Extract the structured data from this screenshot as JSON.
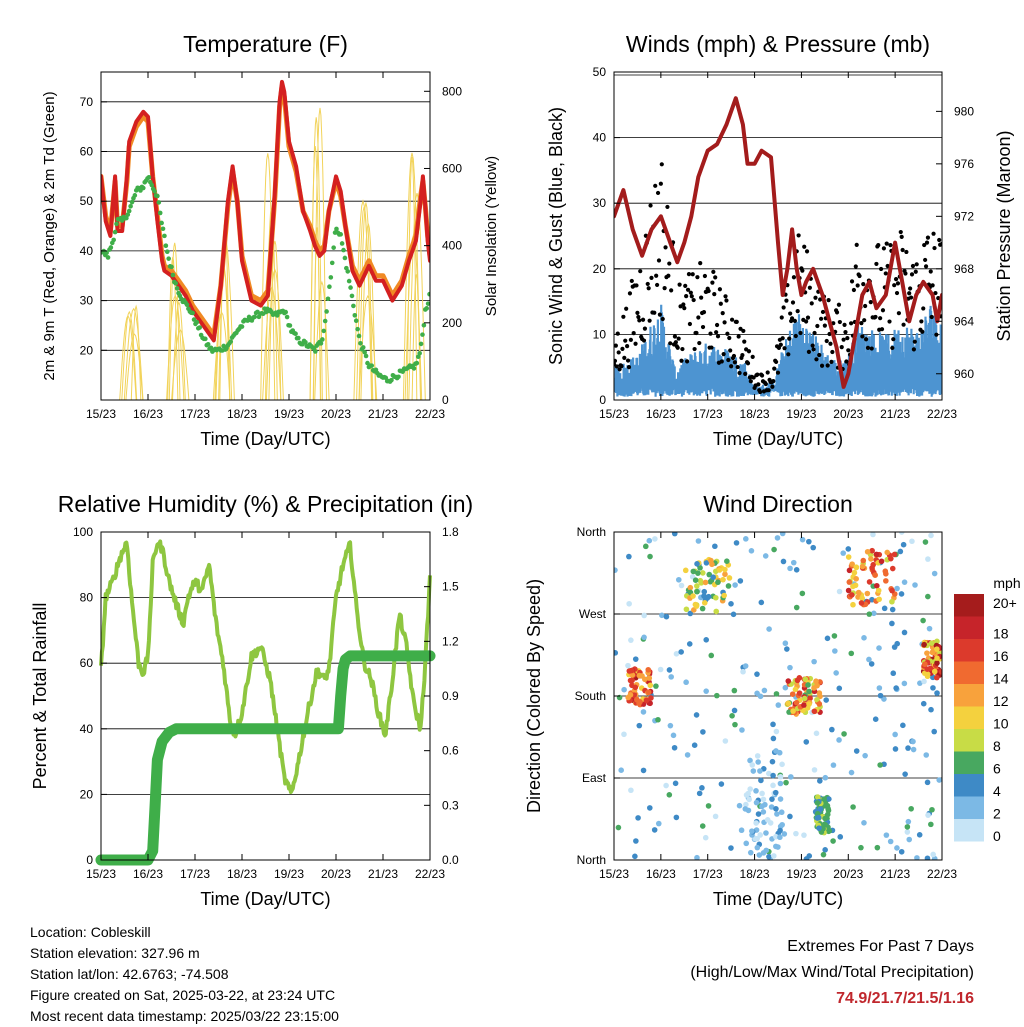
{
  "colors": {
    "temp_red": "#d42020",
    "temp_orange": "#f08a24",
    "dewpoint_green": "#3fae49",
    "solar_yellow": "#f2d35a",
    "wind_blue": "#4d94d1",
    "gust_black": "#000000",
    "pressure_maroon": "#a31c1c",
    "rh_lightgreen": "#8ec640",
    "precip_green": "#3fae49",
    "extremes_red": "#c0272d"
  },
  "shared_x_ticks": [
    "15/23",
    "16/23",
    "17/23",
    "18/23",
    "19/23",
    "20/23",
    "21/23",
    "22/23"
  ],
  "chart_data": [
    {
      "type": "line",
      "title": "Temperature (F)",
      "xlabel": "Time (Day/UTC)",
      "ylabel": "2m & 9m T (Red, Orange) & 2m Td (Green)",
      "y2label": "Solar Insolation (Yellow)",
      "ylim": [
        10,
        76
      ],
      "y2lim": [
        0,
        850
      ],
      "xlim": [
        0,
        7
      ],
      "y_ticks": [
        "20",
        "30",
        "40",
        "50",
        "60",
        "70"
      ],
      "y2_ticks": [
        "0",
        "200",
        "400",
        "600",
        "800"
      ],
      "grid": true,
      "series": [
        {
          "key": "t2m",
          "color": "temp_red",
          "x": [
            0,
            0.1,
            0.2,
            0.3,
            0.35,
            0.45,
            0.55,
            0.6,
            0.75,
            0.9,
            1.0,
            1.1,
            1.2,
            1.3,
            1.35,
            1.5,
            1.65,
            1.8,
            1.95,
            2.1,
            2.25,
            2.4,
            2.55,
            2.7,
            2.8,
            2.9,
            3.0,
            3.1,
            3.2,
            3.4,
            3.55,
            3.7,
            3.8,
            3.85,
            3.9,
            4.0,
            4.15,
            4.3,
            4.45,
            4.55,
            4.65,
            4.75,
            4.85,
            5.0,
            5.1,
            5.2,
            5.35,
            5.5,
            5.7,
            5.85,
            6.0,
            6.2,
            6.4,
            6.55,
            6.7,
            6.8,
            6.85,
            6.9,
            6.95,
            7.0
          ],
          "y": [
            55,
            46,
            43,
            55,
            44,
            44,
            55,
            62,
            66,
            68,
            67,
            55,
            46,
            38,
            36,
            35,
            33,
            31,
            28,
            26,
            24,
            22,
            33,
            50,
            57,
            50,
            38,
            34,
            30,
            29,
            31,
            52,
            70,
            74,
            72,
            62,
            57,
            48,
            44,
            41,
            39,
            40,
            48,
            55,
            52,
            45,
            36,
            33,
            37,
            34,
            34,
            30,
            33,
            38,
            42,
            50,
            55,
            49,
            42,
            38
          ]
        },
        {
          "key": "t9m",
          "color": "temp_orange",
          "x": [
            0,
            0.1,
            0.2,
            0.3,
            0.35,
            0.45,
            0.55,
            0.6,
            0.75,
            0.9,
            1.0,
            1.1,
            1.2,
            1.3,
            1.35,
            1.5,
            1.65,
            1.8,
            1.95,
            2.1,
            2.25,
            2.4,
            2.55,
            2.7,
            2.8,
            2.9,
            3.0,
            3.1,
            3.2,
            3.4,
            3.55,
            3.7,
            3.8,
            3.85,
            3.9,
            4.0,
            4.15,
            4.3,
            4.45,
            4.55,
            4.65,
            4.75,
            4.85,
            5.0,
            5.1,
            5.2,
            5.35,
            5.5,
            5.7,
            5.85,
            6.0,
            6.2,
            6.4,
            6.55,
            6.7,
            6.8,
            6.85,
            6.9,
            6.95,
            7.0
          ],
          "y": [
            55,
            47,
            44,
            54,
            45,
            45,
            54,
            61,
            65,
            67,
            66,
            55,
            47,
            39,
            37,
            36,
            34,
            32,
            29,
            27,
            25,
            23,
            33,
            49,
            56,
            50,
            39,
            35,
            31,
            30,
            32,
            51,
            69,
            73,
            71,
            61,
            56,
            48,
            45,
            42,
            40,
            41,
            48,
            54,
            51,
            45,
            37,
            34,
            38,
            35,
            35,
            31,
            34,
            39,
            43,
            51,
            54,
            49,
            43,
            39
          ]
        },
        {
          "key": "td2m",
          "color": "dewpoint_green",
          "x": [
            0,
            0.15,
            0.25,
            0.35,
            0.45,
            0.6,
            0.75,
            0.9,
            1.0,
            1.1,
            1.2,
            1.3,
            1.45,
            1.6,
            1.75,
            1.9,
            2.05,
            2.2,
            2.35,
            2.5,
            2.7,
            2.9,
            3.1,
            3.3,
            3.5,
            3.7,
            3.9,
            4.05,
            4.2,
            4.4,
            4.55,
            4.7,
            4.8,
            4.9,
            5.0,
            5.1,
            5.2,
            5.3,
            5.5,
            5.7,
            5.9,
            6.1,
            6.3,
            6.5,
            6.7,
            6.8,
            6.9,
            7.0
          ],
          "y": [
            40,
            39,
            42,
            46,
            46,
            48,
            52,
            53,
            55,
            53,
            51,
            45,
            38,
            33,
            30,
            28,
            25,
            22,
            20,
            20,
            21,
            24,
            26,
            27,
            28,
            27,
            28,
            24,
            22,
            21,
            20,
            22,
            28,
            36,
            45,
            43,
            38,
            33,
            22,
            17,
            15,
            14,
            15,
            16,
            17,
            20,
            28,
            31
          ]
        }
      ],
      "solar_series": {
        "key": "solar",
        "color": "solar_yellow",
        "peaks": [
          {
            "x": 0.65,
            "y": 300
          },
          {
            "x": 1.6,
            "y": 430
          },
          {
            "x": 2.65,
            "y": 500
          },
          {
            "x": 3.65,
            "y": 800
          },
          {
            "x": 4.65,
            "y": 840
          },
          {
            "x": 5.65,
            "y": 750
          },
          {
            "x": 6.6,
            "y": 800
          }
        ]
      }
    },
    {
      "type": "scatter",
      "title": "Winds (mph) & Pressure (mb)",
      "xlabel": "Time (Day/UTC)",
      "ylabel": "Sonic Wind & Gust (Blue, Black)",
      "y2label": "Station Pressure (Maroon)",
      "ylim": [
        0,
        50
      ],
      "y2lim": [
        958,
        983
      ],
      "xlim": [
        0,
        7
      ],
      "y_ticks": [
        "0",
        "10",
        "20",
        "30",
        "40",
        "50"
      ],
      "y2_ticks": [
        "960",
        "964",
        "968",
        "972",
        "976",
        "980"
      ],
      "grid": true,
      "series": [
        {
          "key": "pressure",
          "type": "line",
          "color": "pressure_maroon",
          "x": [
            0,
            0.2,
            0.4,
            0.6,
            0.8,
            1.0,
            1.2,
            1.35,
            1.5,
            1.65,
            1.8,
            2.0,
            2.2,
            2.4,
            2.6,
            2.75,
            2.85,
            3.0,
            3.15,
            3.35,
            3.5,
            3.6,
            3.7,
            3.8,
            3.9,
            4.0,
            4.1,
            4.25,
            4.45,
            4.6,
            4.75,
            4.9,
            5.0,
            5.15,
            5.3,
            5.45,
            5.6,
            5.8,
            6.0,
            6.15,
            6.3,
            6.45,
            6.6,
            6.8,
            6.9,
            7.0
          ],
          "y": [
            972,
            974,
            971,
            969,
            971,
            972,
            970,
            968.5,
            970,
            972,
            975,
            977,
            977.5,
            979,
            981,
            979,
            976,
            976,
            977,
            976.5,
            970,
            966,
            968,
            971,
            968,
            966,
            967,
            968,
            966,
            964,
            962,
            959,
            960,
            963,
            966,
            967,
            965,
            966,
            970,
            967,
            964,
            966,
            967,
            966,
            964,
            966
          ]
        },
        {
          "key": "wind",
          "type": "scatter",
          "color": "wind_blue",
          "envelope": [
            [
              0,
              5
            ],
            [
              0.5,
              7
            ],
            [
              0.8,
              12
            ],
            [
              1.0,
              15
            ],
            [
              1.3,
              5
            ],
            [
              1.6,
              7
            ],
            [
              2.0,
              9
            ],
            [
              2.4,
              8
            ],
            [
              2.8,
              6
            ],
            [
              3.0,
              2
            ],
            [
              3.4,
              3
            ],
            [
              3.6,
              8
            ],
            [
              3.9,
              14
            ],
            [
              4.1,
              12
            ],
            [
              4.4,
              9
            ],
            [
              4.6,
              7
            ],
            [
              4.8,
              6
            ],
            [
              5.0,
              7
            ],
            [
              5.2,
              12
            ],
            [
              5.5,
              11
            ],
            [
              5.8,
              10
            ],
            [
              6.2,
              12
            ],
            [
              6.5,
              11
            ],
            [
              6.8,
              16
            ],
            [
              7.0,
              13
            ]
          ]
        },
        {
          "key": "gust",
          "type": "scatter",
          "color": "gust_black",
          "envelope": [
            [
              0,
              10
            ],
            [
              0.3,
              16
            ],
            [
              0.6,
              25
            ],
            [
              0.8,
              33
            ],
            [
              1.0,
              40
            ],
            [
              1.2,
              28
            ],
            [
              1.4,
              18
            ],
            [
              1.7,
              20
            ],
            [
              2.0,
              22
            ],
            [
              2.3,
              17
            ],
            [
              2.6,
              14
            ],
            [
              2.9,
              8
            ],
            [
              3.1,
              4
            ],
            [
              3.4,
              5
            ],
            [
              3.6,
              14
            ],
            [
              3.9,
              26
            ],
            [
              4.1,
              24
            ],
            [
              4.4,
              17
            ],
            [
              4.7,
              15
            ],
            [
              5.0,
              14
            ],
            [
              5.2,
              28
            ],
            [
              5.5,
              25
            ],
            [
              5.8,
              24
            ],
            [
              6.1,
              27
            ],
            [
              6.4,
              23
            ],
            [
              6.7,
              28
            ],
            [
              7.0,
              26
            ]
          ]
        }
      ]
    },
    {
      "type": "line",
      "title": "Relative Humidity (%) & Precipitation (in)",
      "xlabel": "Time (Day/UTC)",
      "ylabel": "Percent & Total Rainfall",
      "ylim": [
        0,
        100
      ],
      "y2lim": [
        0,
        1.8
      ],
      "xlim": [
        0,
        7
      ],
      "y_ticks": [
        "0",
        "20",
        "40",
        "60",
        "80",
        "100"
      ],
      "y2_ticks": [
        "0.0",
        "0.3",
        "0.6",
        "0.9",
        "1.2",
        "1.5",
        "1.8"
      ],
      "grid": true,
      "series": [
        {
          "key": "rh",
          "color": "rh_lightgreen",
          "x": [
            0,
            0.1,
            0.25,
            0.4,
            0.55,
            0.65,
            0.8,
            0.9,
            1.0,
            1.1,
            1.2,
            1.3,
            1.45,
            1.6,
            1.75,
            1.85,
            2.0,
            2.15,
            2.3,
            2.45,
            2.6,
            2.75,
            2.85,
            3.0,
            3.2,
            3.4,
            3.6,
            3.75,
            3.9,
            4.05,
            4.2,
            4.4,
            4.6,
            4.75,
            4.85,
            5.0,
            5.15,
            5.3,
            5.45,
            5.6,
            5.75,
            5.9,
            6.05,
            6.2,
            6.35,
            6.5,
            6.65,
            6.8,
            6.9,
            7.0
          ],
          "y": [
            58,
            80,
            85,
            92,
            97,
            80,
            60,
            57,
            62,
            90,
            97,
            95,
            85,
            78,
            72,
            80,
            85,
            82,
            90,
            72,
            60,
            42,
            38,
            45,
            62,
            65,
            55,
            40,
            25,
            20,
            30,
            45,
            58,
            55,
            58,
            80,
            90,
            96,
            75,
            60,
            55,
            45,
            38,
            55,
            75,
            65,
            48,
            40,
            60,
            86
          ]
        },
        {
          "key": "precip",
          "color": "precip_green",
          "x": [
            0,
            1.0,
            1.1,
            1.15,
            1.2,
            1.3,
            1.45,
            1.6,
            2.0,
            3.0,
            4.0,
            5.05,
            5.1,
            5.15,
            5.2,
            5.3,
            6.0,
            7.0
          ],
          "y": [
            0,
            0,
            0.05,
            0.3,
            0.55,
            0.65,
            0.7,
            0.72,
            0.72,
            0.72,
            0.72,
            0.72,
            0.9,
            1.05,
            1.1,
            1.12,
            1.12,
            1.12
          ]
        }
      ]
    },
    {
      "type": "scatter",
      "title": "Wind Direction",
      "xlabel": "Time (Day/UTC)",
      "ylabel": "Direction (Colored By Speed)",
      "ylim": [
        0,
        360
      ],
      "xlim": [
        0,
        7
      ],
      "y_ticks": [
        "North",
        "East",
        "South",
        "West",
        "North"
      ],
      "grid": true,
      "legend": {
        "title": "mph",
        "labels": [
          "20+",
          "18",
          "16",
          "14",
          "12",
          "10",
          "8",
          "6",
          "4",
          "2",
          "0"
        ],
        "colors": [
          "#a51c1c",
          "#c6242a",
          "#dc3a2c",
          "#f06a30",
          "#f8a23c",
          "#f4d13e",
          "#c8dc46",
          "#48a860",
          "#3e8ac6",
          "#7cb9e5",
          "#c6e4f6"
        ]
      },
      "clusters": [
        {
          "x": [
            0,
            7
          ],
          "y": [
            0,
            360
          ],
          "speed": [
            0,
            6
          ]
        },
        {
          "x": [
            0.3,
            0.8
          ],
          "y": [
            170,
            210
          ],
          "speed": [
            10,
            20
          ]
        },
        {
          "x": [
            1.5,
            2.5
          ],
          "y": [
            270,
            330
          ],
          "speed": [
            4,
            12
          ]
        },
        {
          "x": [
            3.7,
            4.4
          ],
          "y": [
            160,
            200
          ],
          "speed": [
            6,
            18
          ]
        },
        {
          "x": [
            4.3,
            4.6
          ],
          "y": [
            30,
            70
          ],
          "speed": [
            4,
            8
          ]
        },
        {
          "x": [
            5.0,
            6.0
          ],
          "y": [
            280,
            340
          ],
          "speed": [
            8,
            18
          ]
        },
        {
          "x": [
            6.6,
            7.0
          ],
          "y": [
            200,
            240
          ],
          "speed": [
            8,
            20
          ]
        },
        {
          "x": [
            2.8,
            3.6
          ],
          "y": [
            0,
            120
          ],
          "speed": [
            0,
            4
          ]
        }
      ]
    }
  ],
  "info": {
    "location": "Location: Cobleskill",
    "elevation": "Station elevation: 327.96 m",
    "latlon": "Station lat/lon: 42.6763; -74.508",
    "created": "Figure created on Sat, 2025-03-22, at 23:24 UTC",
    "timestamp": "Most recent data timestamp: 2025/03/22 23:15:00"
  },
  "extremes": {
    "title": "Extremes For Past 7 Days",
    "subtitle": "(High/Low/Max Wind/Total Precipitation)",
    "values": "74.9/21.7/21.5/1.16"
  }
}
